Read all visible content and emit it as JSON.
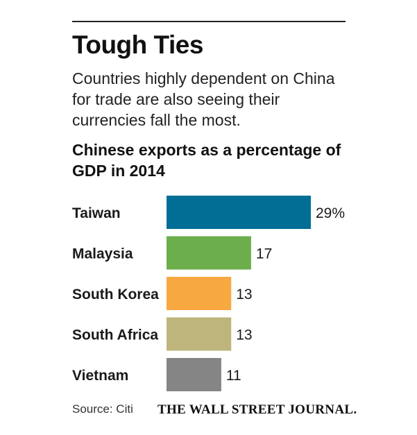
{
  "header": {
    "title": "Tough Ties",
    "subtitle": "Countries highly dependent on China for trade are also seeing their currencies fall the most."
  },
  "chart_data": {
    "type": "bar",
    "orientation": "horizontal",
    "title": "Chinese exports as a percentage of GDP in 2014",
    "categories": [
      "Taiwan",
      "Malaysia",
      "South Korea",
      "South Africa",
      "Vietnam"
    ],
    "values": [
      29,
      17,
      13,
      13,
      11
    ],
    "value_labels": [
      "29%",
      "17",
      "13",
      "13",
      "11"
    ],
    "colors": [
      "#006e95",
      "#6bae4b",
      "#f7a840",
      "#bdb57b",
      "#858585"
    ],
    "xlim": [
      0,
      29
    ],
    "grid": false,
    "legend": "none"
  },
  "footer": {
    "source": "Source: Citi",
    "brand": "THE WALL STREET JOURNAL."
  }
}
